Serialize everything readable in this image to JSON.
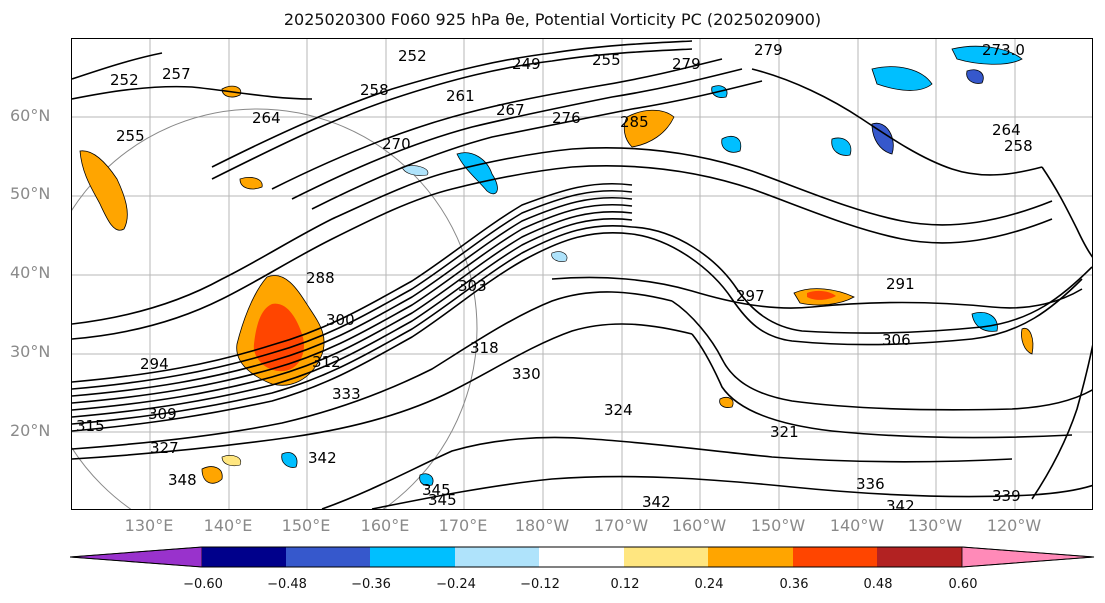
{
  "title": "2025020300 F060 925 hPa θe, Potential Vorticity PC (2025020900)",
  "map": {
    "lat_labels": [
      "60°N",
      "50°N",
      "40°N",
      "30°N",
      "20°N"
    ],
    "lon_labels": [
      "130°E",
      "140°E",
      "150°E",
      "160°E",
      "170°E",
      "180°W",
      "170°W",
      "160°W",
      "150°W",
      "140°W",
      "130°W",
      "120°W"
    ],
    "contour_labels": [
      "252",
      "257",
      "252",
      "249",
      "255",
      "279",
      "279",
      "273.0",
      "258",
      "264",
      "261",
      "267",
      "276",
      "285",
      "255",
      "270",
      "264",
      "258",
      "288",
      "291",
      "297",
      "303",
      "300",
      "306",
      "294",
      "312",
      "318",
      "330",
      "309",
      "315",
      "327",
      "324",
      "321",
      "333",
      "348",
      "342",
      "345",
      "342",
      "336",
      "342",
      "339",
      "345"
    ],
    "pv_colors": {
      "neg_060": "#9932cc",
      "neg_048": "#00008b",
      "neg_036": "#3658cc",
      "neg_024": "#00bfff",
      "neg_012": "#afe3fb",
      "zero": "#ffffff",
      "pos_012": "#ffe680",
      "pos_024": "#ffa500",
      "pos_036": "#ff4500",
      "pos_048": "#b22222",
      "pos_060": "#ff8ab8"
    }
  },
  "colorbar": {
    "ticks": [
      "−0.60",
      "−0.48",
      "−0.36",
      "−0.24",
      "−0.12",
      "0.12",
      "0.24",
      "0.36",
      "0.48",
      "0.60"
    ],
    "colors": [
      "#9932cc",
      "#00008b",
      "#3658cc",
      "#00bfff",
      "#afe3fb",
      "#ffffff",
      "#ffe680",
      "#ffa500",
      "#ff4500",
      "#b22222",
      "#ff8ab8"
    ]
  }
}
